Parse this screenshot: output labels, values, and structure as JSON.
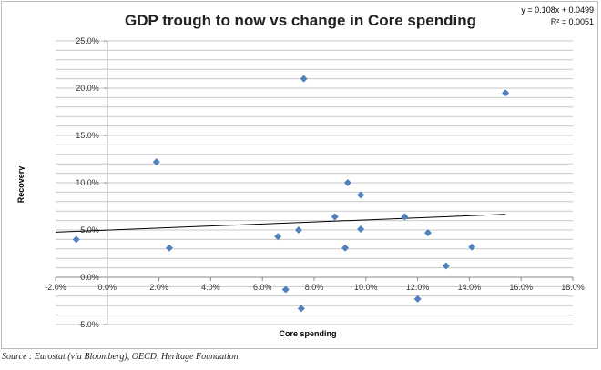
{
  "chart_data": {
    "type": "scatter",
    "title": "GDP trough to now vs change in Core spending",
    "xlabel": "Core spending",
    "ylabel": "Recovery",
    "xlim": [
      -0.02,
      0.18
    ],
    "ylim": [
      -0.05,
      0.25
    ],
    "x_ticks": [
      -0.02,
      0.0,
      0.02,
      0.04,
      0.06,
      0.08,
      0.1,
      0.12,
      0.14,
      0.16,
      0.18
    ],
    "x_tick_labels": [
      "-2.0%",
      "0.0%",
      "2.0%",
      "4.0%",
      "6.0%",
      "8.0%",
      "10.0%",
      "12.0%",
      "14.0%",
      "16.0%",
      "18.0%"
    ],
    "y_ticks": [
      -0.05,
      0.0,
      0.05,
      0.1,
      0.15,
      0.2,
      0.25
    ],
    "y_tick_labels": [
      "-5.0%",
      "0.0%",
      "5.0%",
      "10.0%",
      "15.0%",
      "20.0%",
      "25.0%"
    ],
    "points": [
      {
        "x": -0.012,
        "y": 0.04
      },
      {
        "x": 0.019,
        "y": 0.122
      },
      {
        "x": 0.024,
        "y": 0.031
      },
      {
        "x": 0.066,
        "y": 0.043
      },
      {
        "x": 0.069,
        "y": -0.013
      },
      {
        "x": 0.074,
        "y": 0.05
      },
      {
        "x": 0.075,
        "y": -0.033
      },
      {
        "x": 0.076,
        "y": 0.21
      },
      {
        "x": 0.088,
        "y": 0.064
      },
      {
        "x": 0.092,
        "y": 0.031
      },
      {
        "x": 0.093,
        "y": 0.1
      },
      {
        "x": 0.098,
        "y": 0.087
      },
      {
        "x": 0.098,
        "y": 0.051
      },
      {
        "x": 0.115,
        "y": 0.064
      },
      {
        "x": 0.12,
        "y": -0.023
      },
      {
        "x": 0.124,
        "y": 0.047
      },
      {
        "x": 0.131,
        "y": 0.012
      },
      {
        "x": 0.141,
        "y": 0.032
      },
      {
        "x": 0.154,
        "y": 0.195
      }
    ],
    "trendline": {
      "slope": 0.108,
      "intercept": 0.0499,
      "x_range": [
        -0.02,
        0.154
      ]
    },
    "equation": "y = 0.108x + 0.0499",
    "r_squared": "R² = 0.0051",
    "marker_color": "#4f81bd",
    "grid_color": "#c8c8c8",
    "trend_color": "#000000"
  },
  "source": "Source : Eurostat (via Bloomberg), OECD, Heritage Foundation."
}
